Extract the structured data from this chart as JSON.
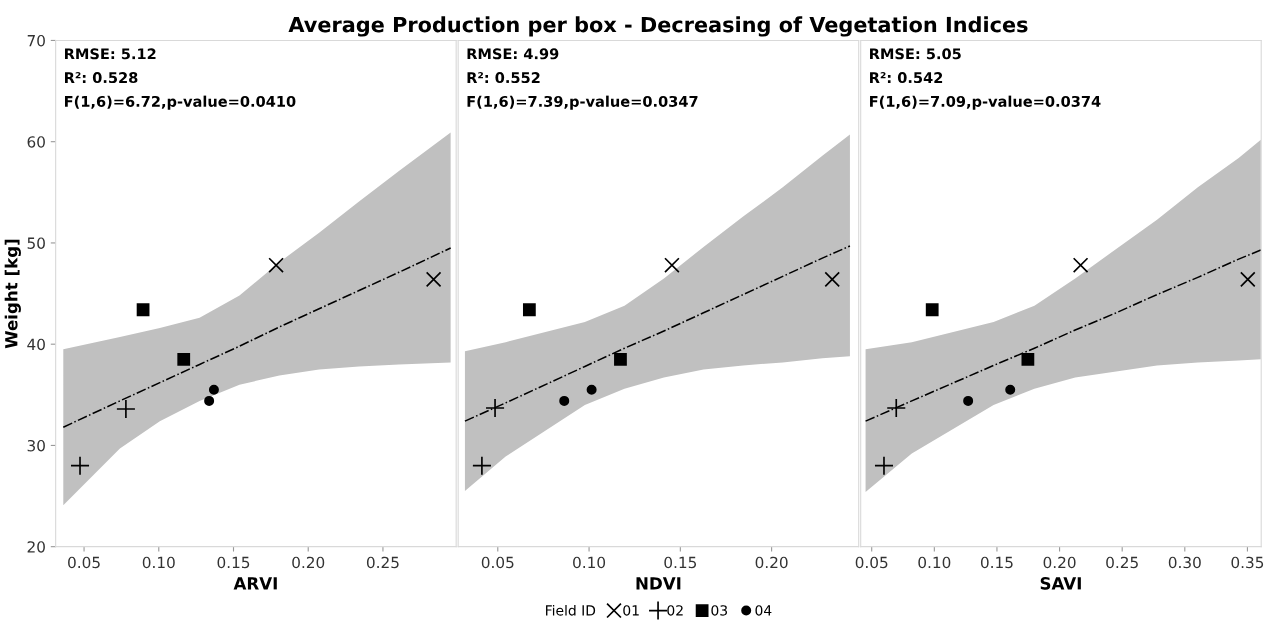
{
  "chart_data": [
    {
      "type": "scatter",
      "xlabel": "ARVI",
      "ylabel": "Weight [kg]",
      "xlim": [
        0.031,
        0.299
      ],
      "xticks": [
        {
          "value": 0.05,
          "label": "0.05"
        },
        {
          "value": 0.1,
          "label": "0.10"
        },
        {
          "value": 0.15,
          "label": "0.15"
        },
        {
          "value": 0.2,
          "label": "0.20"
        },
        {
          "value": 0.25,
          "label": "0.25"
        }
      ],
      "ylim": [
        20,
        70
      ],
      "yticks": [
        20,
        30,
        40,
        50,
        60,
        70
      ],
      "grid": false,
      "legend": false,
      "annotations": [
        "RMSE: 5.12",
        "R²: 0.528",
        "F(1,6)=6.72,p-value=0.0410"
      ],
      "series": [
        {
          "marker": "cross",
          "color": "#000000",
          "x": [
            0.1785,
            0.2839
          ],
          "values": [
            47.8,
            46.4
          ]
        },
        {
          "marker": "plus",
          "color": "#000000",
          "x": [
            0.078,
            0.0473
          ],
          "values": [
            33.6,
            28.0
          ]
        },
        {
          "marker": "square",
          "color": "#000000",
          "x": [
            0.0895,
            0.1167
          ],
          "values": [
            43.4,
            38.5
          ]
        },
        {
          "marker": "circle",
          "color": "#000000",
          "x": [
            0.1337,
            0.1369
          ],
          "values": [
            34.4,
            35.5
          ]
        },
        {
          "type": "line",
          "line_style": "dashdot",
          "color": "#000000",
          "x": [
            0.0361,
            0.074,
            0.1007,
            0.1273,
            0.154,
            0.1807,
            0.2073,
            0.234,
            0.2607,
            0.2953
          ],
          "values": [
            31.8,
            34.4,
            36.2,
            38.0,
            39.8,
            41.7,
            43.5,
            45.3,
            47.1,
            49.5
          ],
          "lower": [
            24.1,
            29.7,
            32.4,
            34.4,
            36.0,
            36.9,
            37.5,
            37.8,
            38.0,
            38.2
          ],
          "upper": [
            39.5,
            40.7,
            41.6,
            42.6,
            44.8,
            48.1,
            51.0,
            54.1,
            57.1,
            60.9
          ]
        }
      ]
    },
    {
      "type": "scatter",
      "title": "Average Production per box - Decreasing of Vegetation Indices",
      "xlabel": "NDVI",
      "xlim": [
        0.0283,
        0.2477
      ],
      "xticks": [
        {
          "value": 0.05,
          "label": "0.05"
        },
        {
          "value": 0.1,
          "label": "0.10"
        },
        {
          "value": 0.15,
          "label": "0.15"
        },
        {
          "value": 0.2,
          "label": "0.20"
        }
      ],
      "ylim": [
        20,
        70
      ],
      "yticks": [
        20,
        30,
        40,
        50,
        60,
        70
      ],
      "tick_labels": "x",
      "grid": false,
      "legend": "bottom",
      "legend_title": "Field ID",
      "annotations": [
        "RMSE: 4.99",
        "R²: 0.552",
        "F(1,6)=7.39,p-value=0.0347"
      ],
      "series": [
        {
          "name": "01",
          "marker": "cross",
          "color": "#000000",
          "x": [
            0.1454,
            0.2332
          ],
          "values": [
            47.8,
            46.4
          ]
        },
        {
          "name": "02",
          "marker": "plus",
          "color": "#000000",
          "x": [
            0.0485,
            0.0413
          ],
          "values": [
            33.7,
            28.0
          ]
        },
        {
          "name": "03",
          "marker": "square",
          "color": "#000000",
          "x": [
            0.0673,
            0.1172
          ],
          "values": [
            43.4,
            38.5
          ]
        },
        {
          "name": "04",
          "marker": "circle",
          "color": "#000000",
          "x": [
            0.0864,
            0.1014
          ],
          "values": [
            34.4,
            35.5
          ]
        },
        {
          "type": "line",
          "line_style": "dashdot",
          "color": "#000000",
          "x": [
            0.032,
            0.0543,
            0.0977,
            0.1194,
            0.141,
            0.1627,
            0.1844,
            0.2061,
            0.2278,
            0.2429
          ],
          "values": [
            32.4,
            34.2,
            37.8,
            39.6,
            41.3,
            43.1,
            44.9,
            46.7,
            48.5,
            49.7
          ],
          "lower": [
            25.5,
            28.9,
            34.0,
            35.6,
            36.7,
            37.5,
            37.9,
            38.2,
            38.6,
            38.8
          ],
          "upper": [
            39.3,
            40.2,
            42.2,
            43.8,
            46.5,
            49.6,
            52.6,
            55.5,
            58.6,
            60.7
          ]
        }
      ]
    },
    {
      "type": "scatter",
      "xlabel": "SAVI",
      "xlim": [
        0.0412,
        0.361
      ],
      "xticks": [
        {
          "value": 0.05,
          "label": "0.05"
        },
        {
          "value": 0.1,
          "label": "0.10"
        },
        {
          "value": 0.15,
          "label": "0.15"
        },
        {
          "value": 0.2,
          "label": "0.20"
        },
        {
          "value": 0.25,
          "label": "0.25"
        },
        {
          "value": 0.3,
          "label": "0.30"
        },
        {
          "value": 0.35,
          "label": "0.35"
        }
      ],
      "ylim": [
        20,
        70
      ],
      "yticks": [
        20,
        30,
        40,
        50,
        60,
        70
      ],
      "tick_labels": "x",
      "grid": false,
      "legend": false,
      "annotations": [
        "RMSE: 5.05",
        "R²: 0.542",
        "F(1,6)=7.09,p-value=0.0374"
      ],
      "series": [
        {
          "marker": "cross",
          "color": "#000000",
          "x": [
            0.2168,
            0.3503
          ],
          "values": [
            47.8,
            46.4
          ]
        },
        {
          "marker": "plus",
          "color": "#000000",
          "x": [
            0.0696,
            0.0598
          ],
          "values": [
            33.7,
            28.0
          ]
        },
        {
          "marker": "square",
          "color": "#000000",
          "x": [
            0.0983,
            0.1747
          ],
          "values": [
            43.4,
            38.5
          ]
        },
        {
          "marker": "circle",
          "color": "#000000",
          "x": [
            0.127,
            0.1606
          ],
          "values": [
            34.4,
            35.5
          ]
        },
        {
          "type": "line",
          "line_style": "dashdot",
          "color": "#000000",
          "x": [
            0.0451,
            0.082,
            0.1473,
            0.1799,
            0.2125,
            0.2452,
            0.2778,
            0.3104,
            0.343,
            0.3607
          ],
          "values": [
            32.4,
            34.4,
            37.9,
            39.6,
            41.4,
            43.1,
            44.9,
            46.6,
            48.4,
            49.3
          ],
          "lower": [
            25.4,
            29.2,
            34.0,
            35.6,
            36.7,
            37.3,
            37.9,
            38.2,
            38.4,
            38.5
          ],
          "upper": [
            39.5,
            40.2,
            42.2,
            43.8,
            46.5,
            49.4,
            52.3,
            55.5,
            58.4,
            60.2
          ]
        }
      ]
    }
  ]
}
